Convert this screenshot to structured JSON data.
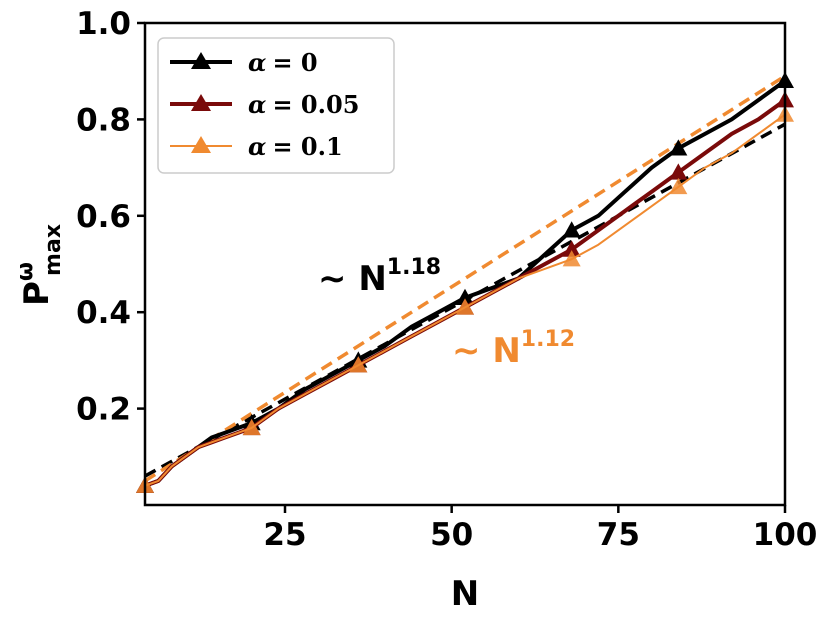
{
  "chart_data": {
    "type": "line",
    "xlabel": "N",
    "ylabel": {
      "base": "P",
      "sup": "ω",
      "sub": "max"
    },
    "xlim": [
      4,
      100
    ],
    "ylim": [
      0.0,
      1.0
    ],
    "x_ticks": [
      25,
      50,
      75,
      100
    ],
    "y_ticks": [
      0.2,
      0.4,
      0.6,
      0.8,
      1.0
    ],
    "x_tick_labels": [
      "25",
      "50",
      "75",
      "100"
    ],
    "y_tick_labels": [
      "0.2",
      "0.4",
      "0.6",
      "0.8",
      "1.0"
    ],
    "grid": false,
    "legend_position": "top-left",
    "series": [
      {
        "label_symbol": "α",
        "label_value": "= 0",
        "color": "#000000",
        "line_width": 4,
        "marker": "triangle",
        "x": [
          4,
          6,
          8,
          10,
          12,
          14,
          16,
          18,
          20,
          24,
          28,
          32,
          36,
          40,
          44,
          48,
          52,
          56,
          60,
          64,
          68,
          72,
          76,
          80,
          84,
          88,
          92,
          96,
          100
        ],
        "y": [
          0.04,
          0.05,
          0.08,
          0.1,
          0.12,
          0.14,
          0.15,
          0.16,
          0.17,
          0.2,
          0.24,
          0.27,
          0.3,
          0.33,
          0.37,
          0.4,
          0.43,
          0.45,
          0.47,
          0.52,
          0.57,
          0.6,
          0.65,
          0.7,
          0.74,
          0.77,
          0.8,
          0.84,
          0.88
        ],
        "marker_x": [
          4,
          20,
          36,
          52,
          68,
          84,
          100
        ],
        "marker_y": [
          0.04,
          0.17,
          0.3,
          0.43,
          0.57,
          0.74,
          0.88
        ]
      },
      {
        "label_symbol": "α",
        "label_value": "= 0.05",
        "color": "#7a0a0a",
        "line_width": 4,
        "marker": "triangle",
        "x": [
          4,
          6,
          8,
          10,
          12,
          14,
          16,
          18,
          20,
          24,
          28,
          32,
          36,
          40,
          44,
          48,
          52,
          56,
          60,
          64,
          68,
          72,
          76,
          80,
          84,
          88,
          92,
          96,
          100
        ],
        "y": [
          0.04,
          0.05,
          0.08,
          0.1,
          0.12,
          0.13,
          0.14,
          0.15,
          0.16,
          0.2,
          0.23,
          0.26,
          0.29,
          0.32,
          0.35,
          0.38,
          0.41,
          0.44,
          0.47,
          0.5,
          0.53,
          0.57,
          0.61,
          0.65,
          0.69,
          0.73,
          0.77,
          0.8,
          0.84
        ],
        "marker_x": [
          4,
          20,
          36,
          52,
          68,
          84,
          100
        ],
        "marker_y": [
          0.04,
          0.16,
          0.29,
          0.41,
          0.53,
          0.69,
          0.84
        ]
      },
      {
        "label_symbol": "α",
        "label_value": "= 0.1",
        "color": "#f08a30",
        "line_width": 2,
        "marker": "triangle",
        "x": [
          4,
          6,
          8,
          10,
          12,
          14,
          16,
          18,
          20,
          24,
          28,
          32,
          36,
          40,
          44,
          48,
          52,
          56,
          60,
          64,
          68,
          72,
          76,
          80,
          84,
          88,
          92,
          96,
          100
        ],
        "y": [
          0.04,
          0.05,
          0.08,
          0.1,
          0.12,
          0.13,
          0.14,
          0.15,
          0.16,
          0.2,
          0.23,
          0.26,
          0.29,
          0.32,
          0.35,
          0.38,
          0.41,
          0.44,
          0.47,
          0.49,
          0.51,
          0.54,
          0.58,
          0.62,
          0.66,
          0.7,
          0.73,
          0.77,
          0.81
        ],
        "marker_x": [
          4,
          20,
          36,
          52,
          68,
          84,
          100
        ],
        "marker_y": [
          0.04,
          0.16,
          0.29,
          0.41,
          0.51,
          0.66,
          0.81
        ]
      }
    ],
    "fits": [
      {
        "color": "#000000",
        "x": [
          4,
          100
        ],
        "y": [
          0.06,
          0.79
        ],
        "style": "dashed"
      },
      {
        "color": "#f08a30",
        "x": [
          4,
          100
        ],
        "y": [
          0.05,
          0.89
        ],
        "style": "dashed"
      }
    ],
    "annotations": [
      {
        "prefix": "∼ N",
        "exponent": "1.18",
        "color": "#000000"
      },
      {
        "prefix": "∼ N",
        "exponent": "1.12",
        "color": "#f08a30"
      }
    ]
  }
}
